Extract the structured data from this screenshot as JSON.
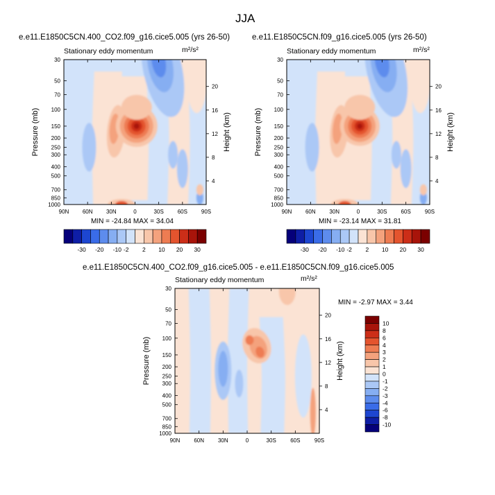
{
  "page": {
    "title": "JJA"
  },
  "colors": {
    "levels": [
      "#05007a",
      "#0e1ea6",
      "#1d46d1",
      "#3a6ce8",
      "#5d8ced",
      "#86aef2",
      "#abc8f6",
      "#d2e3fa",
      "#fbe3d4",
      "#f8c6aa",
      "#f4a27d",
      "#ee7c52",
      "#e4542e",
      "#cc2e18",
      "#a8140a",
      "#7b0000"
    ],
    "background": "#ffffff"
  },
  "chart_data": [
    {
      "type": "contour",
      "name": "top-left",
      "title": "e.e11.E1850C5CN.400_CO2.f09_g16.cice5.005 (yrs 26-50)",
      "subtitle": "Stationary eddy momentum",
      "units": "m²/s²",
      "ylabel": "Pressure (mb)",
      "ylabel_right": "Height (km)",
      "x_ticks": [
        "90N",
        "60N",
        "30N",
        "0",
        "30S",
        "60S",
        "90S"
      ],
      "y_ticks": [
        "30",
        "50",
        "70",
        "100",
        "150",
        "200",
        "250",
        "300",
        "400",
        "500",
        "700",
        "850",
        "1000"
      ],
      "height_ticks": [
        "20",
        "16",
        "12",
        "8",
        "4"
      ],
      "stats": "MIN = -24.84  MAX = 34.04",
      "min": -24.84,
      "max": 34.04,
      "features": [
        {
          "lat": -2,
          "p": 150,
          "value": 34,
          "desc": "main positive maximum"
        },
        {
          "lat": 24,
          "p": 150,
          "value": 10,
          "desc": "secondary positive lobe"
        },
        {
          "lat": -28,
          "p": 35,
          "value": -20,
          "desc": "upper-level negative core"
        },
        {
          "lat": 17,
          "p": 1000,
          "value": 20,
          "desc": "near-surface positive"
        }
      ]
    },
    {
      "type": "contour",
      "name": "top-right",
      "title": "e.e11.E1850C5CN.f09_g16.cice5.005 (yrs 26-50)",
      "subtitle": "Stationary eddy momentum",
      "units": "m²/s²",
      "ylabel": "Pressure (mb)",
      "ylabel_right": "Height (km)",
      "x_ticks": [
        "90N",
        "60N",
        "30N",
        "0",
        "30S",
        "60S",
        "90S"
      ],
      "y_ticks": [
        "30",
        "50",
        "70",
        "100",
        "150",
        "200",
        "250",
        "300",
        "400",
        "500",
        "700",
        "850",
        "1000"
      ],
      "height_ticks": [
        "20",
        "16",
        "12",
        "8",
        "4"
      ],
      "stats": "MIN = -23.14  MAX = 31.81",
      "min": -23.14,
      "max": 31.81,
      "features": [
        {
          "lat": -2,
          "p": 150,
          "value": 31,
          "desc": "main positive maximum"
        },
        {
          "lat": 26,
          "p": 150,
          "value": 10,
          "desc": "secondary positive lobe"
        },
        {
          "lat": -28,
          "p": 35,
          "value": -18,
          "desc": "upper-level negative core"
        },
        {
          "lat": 17,
          "p": 1000,
          "value": 15,
          "desc": "near-surface positive"
        }
      ]
    },
    {
      "type": "contour",
      "name": "difference",
      "title": "e.e11.E1850C5CN.400_CO2.f09_g16.cice5.005 - e.e11.E1850C5CN.f09_g16.cice5.005",
      "subtitle": "Stationary eddy momentum",
      "units": "m²/s²",
      "ylabel": "Pressure (mb)",
      "ylabel_right": "Height (km)",
      "x_ticks": [
        "90N",
        "60N",
        "30N",
        "0",
        "30S",
        "60S",
        "90S"
      ],
      "y_ticks": [
        "30",
        "50",
        "70",
        "100",
        "150",
        "200",
        "250",
        "300",
        "400",
        "500",
        "700",
        "850",
        "1000"
      ],
      "height_ticks": [
        "20",
        "16",
        "12",
        "8",
        "4"
      ],
      "stats": "MIN = -2.97  MAX =  3.44",
      "min": -2.97,
      "max": 3.44,
      "features": [
        {
          "lat": -15,
          "p": 130,
          "value": 3,
          "desc": "positive dipole"
        },
        {
          "lat": 30,
          "p": 200,
          "value": -2,
          "desc": "negative lobe"
        },
        {
          "lat": -50,
          "p": 32,
          "value": 1,
          "desc": "upper positive"
        }
      ]
    }
  ],
  "colorbars": [
    {
      "name": "colorbar-top-left",
      "labels": [
        "-30",
        "-20",
        "-10",
        "-2",
        "2",
        "10",
        "20",
        "30"
      ]
    },
    {
      "name": "colorbar-top-right",
      "labels": [
        "-30",
        "-20",
        "-10",
        "-2",
        "2",
        "10",
        "20",
        "30"
      ]
    },
    {
      "name": "colorbar-difference",
      "labels": [
        "10",
        "8",
        "6",
        "4",
        "3",
        "2",
        "1",
        "0",
        "-1",
        "-2",
        "-3",
        "-4",
        "-6",
        "-8",
        "-10"
      ]
    }
  ]
}
